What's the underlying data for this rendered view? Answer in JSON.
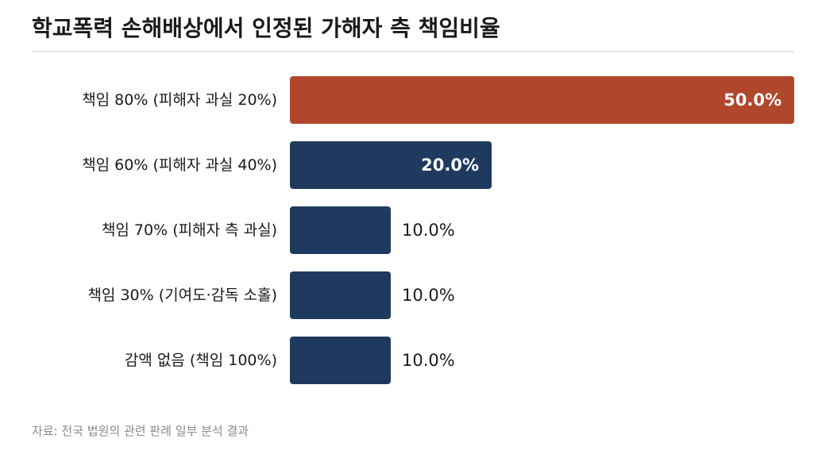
{
  "title": "학교폭력 손해배상에서 인정된 가해자 측 책임비율",
  "source": "자료: 전국 법원의 관련 판례 일부 분석 결과",
  "colors": {
    "highlight": "#b0472c",
    "bar": "#1f3a5f",
    "label_inside": "#ffffff",
    "label_outside": "#1a1a1a",
    "category_text": "#1a1a1a"
  },
  "chart_data": {
    "type": "bar",
    "orientation": "horizontal",
    "categories": [
      "책임 80% (피해자 과실 20%)",
      "책임 60% (피해자 과실 40%)",
      "책임 70% (피해자 측 과실)",
      "책임 30% (기여도·감독 소홀)",
      "감액 없음 (책임 100%)"
    ],
    "values": [
      50.0,
      20.0,
      10.0,
      10.0,
      10.0
    ],
    "value_labels": [
      "50.0%",
      "20.0%",
      "10.0%",
      "10.0%",
      "10.0%"
    ],
    "xlim": [
      0,
      50
    ],
    "grid": false,
    "highlight_index": 0
  }
}
